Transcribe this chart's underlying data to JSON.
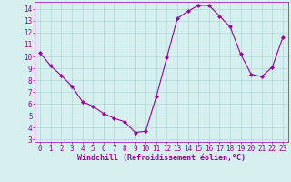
{
  "x": [
    0,
    1,
    2,
    3,
    4,
    5,
    6,
    7,
    8,
    9,
    10,
    11,
    12,
    13,
    14,
    15,
    16,
    17,
    18,
    19,
    20,
    21,
    22,
    23
  ],
  "y": [
    10.3,
    9.2,
    8.4,
    7.5,
    6.2,
    5.8,
    5.2,
    4.8,
    4.5,
    3.6,
    3.7,
    6.6,
    9.9,
    13.2,
    13.8,
    14.3,
    14.3,
    13.4,
    12.5,
    10.2,
    8.5,
    8.3,
    9.1,
    11.6
  ],
  "line_color": "#990099",
  "marker": "D",
  "markersize": 2,
  "linewidth": 0.8,
  "bg_color": "#d6f0f0",
  "grid_color": "#b0d8d8",
  "xlabel": "Windchill (Refroidissement éolien,°C)",
  "xlabel_fontsize": 6,
  "tick_fontsize": 5.5,
  "ylim": [
    2.8,
    14.6
  ],
  "xlim": [
    -0.5,
    23.5
  ],
  "yticks": [
    3,
    4,
    5,
    6,
    7,
    8,
    9,
    10,
    11,
    12,
    13,
    14
  ],
  "xticks": [
    0,
    1,
    2,
    3,
    4,
    5,
    6,
    7,
    8,
    9,
    10,
    11,
    12,
    13,
    14,
    15,
    16,
    17,
    18,
    19,
    20,
    21,
    22,
    23
  ]
}
